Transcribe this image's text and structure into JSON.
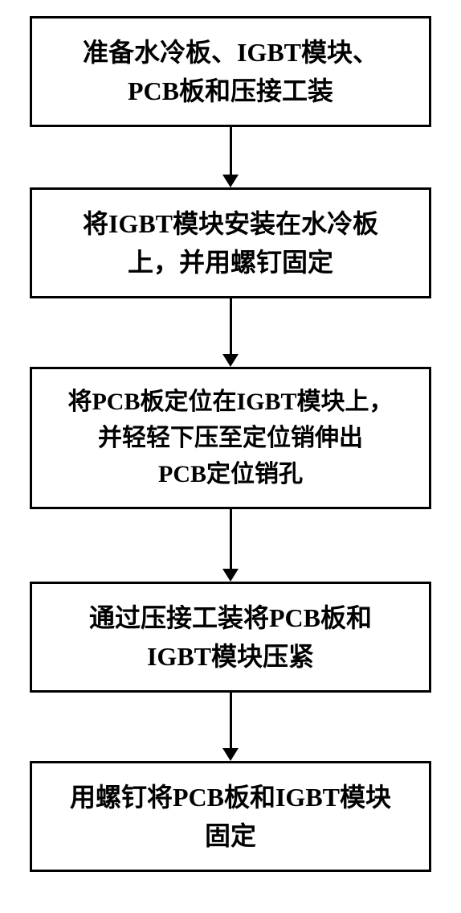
{
  "flowchart": {
    "type": "flowchart",
    "direction": "vertical",
    "box_border_color": "#000000",
    "box_border_width": 3,
    "box_background": "#ffffff",
    "arrow_color": "#000000",
    "arrow_line_width": 3,
    "text_color": "#000000",
    "font_weight": "bold",
    "steps": [
      {
        "lines": [
          "准备水冷板、IGBT模块、",
          "PCB板和压接工装"
        ],
        "font_size": 32,
        "arrow_after_height": 60
      },
      {
        "lines": [
          "将IGBT模块安装在水冷板",
          "上，并用螺钉固定"
        ],
        "font_size": 32,
        "arrow_after_height": 70
      },
      {
        "lines": [
          "将PCB板定位在IGBT模块上，",
          "并轻轻下压至定位销伸出",
          "PCB定位销孔"
        ],
        "font_size": 30,
        "arrow_after_height": 75
      },
      {
        "lines": [
          "通过压接工装将PCB板和",
          "IGBT模块压紧"
        ],
        "font_size": 32,
        "arrow_after_height": 70
      },
      {
        "lines": [
          "用螺钉将PCB板和IGBT模块",
          "固定"
        ],
        "font_size": 32,
        "arrow_after_height": 0
      }
    ]
  }
}
